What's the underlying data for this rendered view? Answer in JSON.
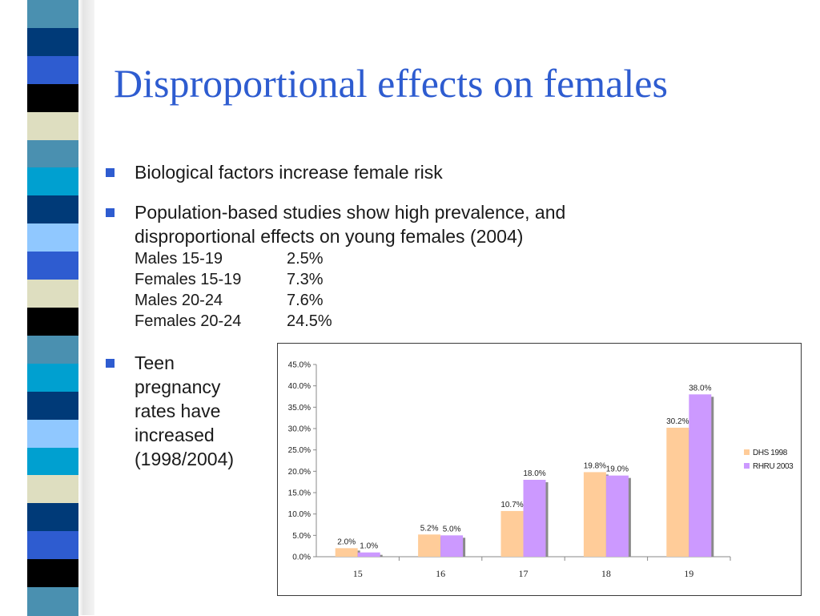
{
  "slide": {
    "title": "Disproportional effects on females",
    "bullets": [
      {
        "text": "Biological factors increase female risk"
      },
      {
        "text_lines": [
          "Population-based studies show high prevalence, and",
          "disproportional effects on young females (2004)"
        ],
        "stats": [
          {
            "label": "Males 15-19",
            "value": "2.5%"
          },
          {
            "label": "Females 15-19",
            "value": "7.3%"
          },
          {
            "label": "Males 20-24",
            "value": "7.6%"
          },
          {
            "label": "Females 20-24",
            "value": "24.5%"
          }
        ]
      },
      {
        "text_lines": [
          "Teen",
          "pregnancy",
          "rates have",
          "increased",
          "(1998/2004)"
        ]
      }
    ]
  },
  "decoration": {
    "strip_colors": [
      "#4a90b0",
      "#003a78",
      "#2e5cd0",
      "#000000",
      "#dedec0",
      "#4a90b0",
      "#00a0d0",
      "#003a78",
      "#90c8ff",
      "#2e5cd0",
      "#dedec0",
      "#000000",
      "#4a90b0",
      "#00a0d0",
      "#003a78",
      "#90c8ff",
      "#00a0d0",
      "#dedec0",
      "#003a78",
      "#2e5cd0",
      "#000000",
      "#4a90b0"
    ]
  },
  "chart_data": {
    "type": "bar",
    "categories": [
      "15",
      "16",
      "17",
      "18",
      "19"
    ],
    "series": [
      {
        "name": "DHS 1998",
        "color": "#ffcc99",
        "values": [
          2.0,
          5.2,
          10.7,
          19.8,
          30.2
        ],
        "labels": [
          "2.0%",
          "5.2%",
          "10.7%",
          "19.8%",
          "30.2%"
        ]
      },
      {
        "name": "RHRU 2003",
        "color": "#cc99ff",
        "values": [
          1.0,
          5.0,
          18.0,
          19.0,
          38.0
        ],
        "labels": [
          "1.0%",
          "5.0%",
          "18.0%",
          "19.0%",
          "38.0%"
        ]
      }
    ],
    "ylim": [
      0,
      45
    ],
    "yticks": [
      "0.0%",
      "5.0%",
      "10.0%",
      "15.0%",
      "20.0%",
      "25.0%",
      "30.0%",
      "35.0%",
      "40.0%",
      "45.0%"
    ],
    "grid": false,
    "legend_position": "right"
  }
}
